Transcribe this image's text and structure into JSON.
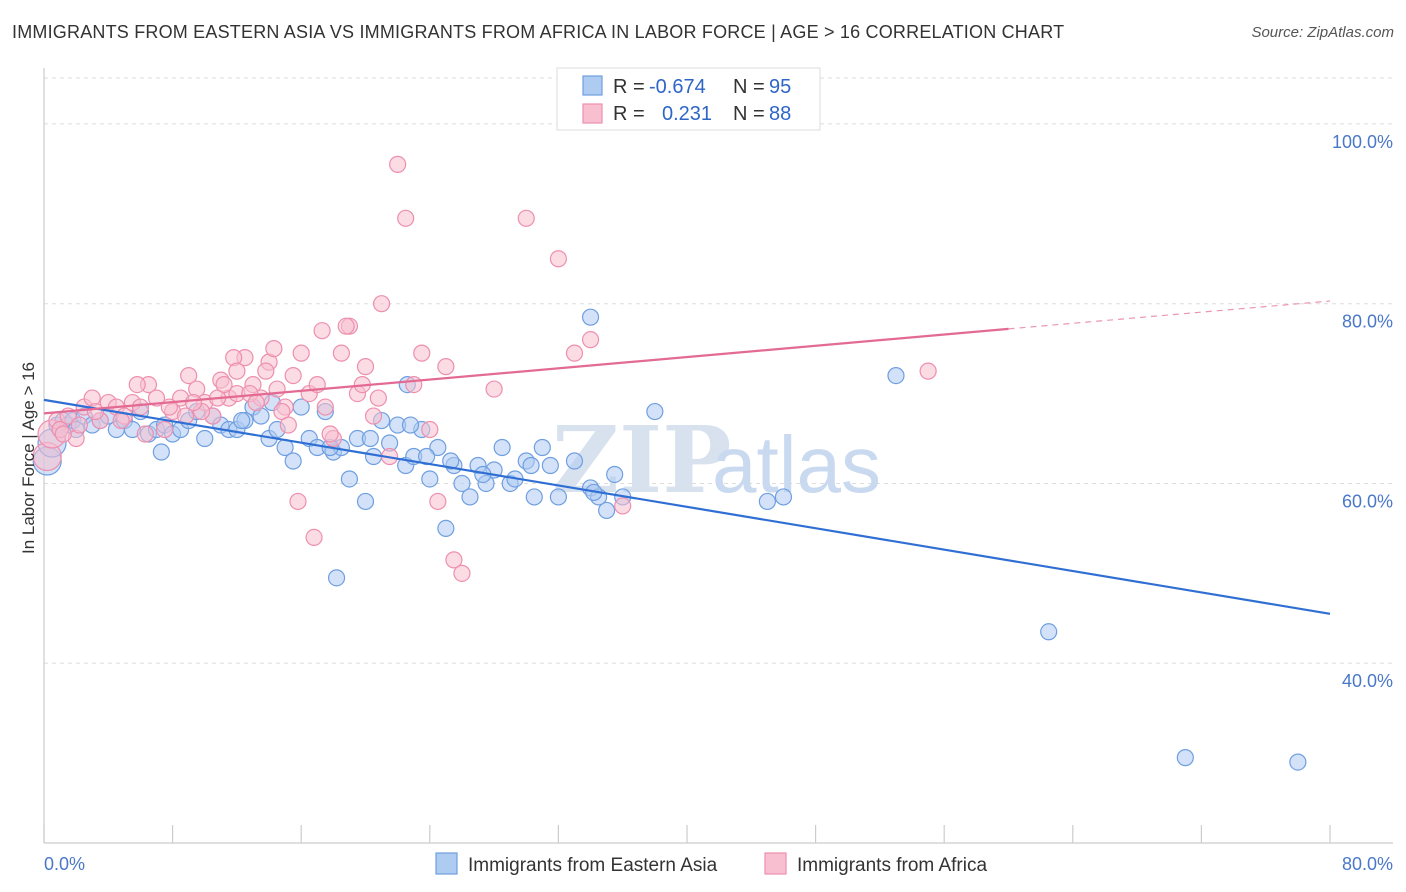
{
  "title": "IMMIGRANTS FROM EASTERN ASIA VS IMMIGRANTS FROM AFRICA IN LABOR FORCE | AGE > 16 CORRELATION CHART",
  "source": "Source: ZipAtlas.com",
  "watermark": {
    "zip": "ZIP",
    "atlas": "atlas"
  },
  "colors": {
    "blue_fill": "#aecbf2",
    "blue_stroke": "#6f9fe0",
    "blue_line": "#2f6fd4",
    "pink_fill": "#f7bfd0",
    "pink_stroke": "#ee8fae",
    "pink_line": "#e36a93",
    "tick_text": "#4a78c8",
    "grid": "#dddddd"
  },
  "legend": {
    "rows": [
      {
        "r_label": "R =",
        "r_value": "-0.674",
        "n_label": "N =",
        "n_value": "95"
      },
      {
        "r_label": "R =",
        "r_value": "0.231",
        "n_label": "N =",
        "n_value": "88"
      }
    ]
  },
  "chart_data": {
    "type": "scatter",
    "ylabel": "In Labor Force | Age > 16",
    "xlim": [
      0,
      80
    ],
    "ylim": [
      20,
      106
    ],
    "x_tick_labels": [
      "0.0%",
      "80.0%"
    ],
    "y_ticks": [
      40,
      60,
      80,
      100
    ],
    "y_tick_labels": [
      "40.0%",
      "60.0%",
      "80.0%",
      "100.0%"
    ],
    "grid": "horizontal dashed",
    "legend_position": "top-center",
    "series": [
      {
        "name": "Immigrants from Eastern Asia",
        "color": "#6f9fe0",
        "trend": {
          "x": [
            0,
            80
          ],
          "y": [
            69.3,
            45.5
          ]
        },
        "points": [
          [
            0.2,
            62.5
          ],
          [
            0.5,
            64.5
          ],
          [
            0.8,
            66.5
          ],
          [
            1.0,
            66.0
          ],
          [
            1.2,
            67.0
          ],
          [
            1.5,
            66.5
          ],
          [
            1.8,
            67.0
          ],
          [
            2.0,
            66.0
          ],
          [
            2.5,
            67.5
          ],
          [
            3.0,
            66.5
          ],
          [
            3.5,
            67.0
          ],
          [
            4.0,
            67.5
          ],
          [
            4.5,
            66.0
          ],
          [
            5.0,
            67.0
          ],
          [
            5.5,
            66.0
          ],
          [
            6.0,
            68.0
          ],
          [
            6.5,
            65.5
          ],
          [
            7.0,
            66.0
          ],
          [
            7.5,
            66.5
          ],
          [
            8.0,
            65.5
          ],
          [
            8.5,
            66.0
          ],
          [
            9.0,
            67.0
          ],
          [
            9.5,
            68.0
          ],
          [
            10.0,
            65.0
          ],
          [
            10.5,
            67.5
          ],
          [
            11.0,
            66.5
          ],
          [
            11.5,
            66.0
          ],
          [
            12.0,
            66.0
          ],
          [
            12.5,
            67.0
          ],
          [
            13.0,
            68.5
          ],
          [
            13.5,
            67.5
          ],
          [
            14.0,
            65.0
          ],
          [
            14.5,
            66.0
          ],
          [
            15.0,
            64.0
          ],
          [
            15.5,
            62.5
          ],
          [
            16.0,
            68.5
          ],
          [
            16.5,
            65.0
          ],
          [
            17.0,
            64.0
          ],
          [
            17.5,
            68.0
          ],
          [
            18.0,
            63.5
          ],
          [
            18.5,
            64.0
          ],
          [
            19.0,
            60.5
          ],
          [
            19.5,
            65.0
          ],
          [
            20.0,
            58.0
          ],
          [
            20.5,
            63.0
          ],
          [
            21.0,
            67.0
          ],
          [
            21.5,
            64.5
          ],
          [
            22.0,
            66.5
          ],
          [
            22.5,
            62.0
          ],
          [
            23.0,
            63.0
          ],
          [
            23.5,
            66.0
          ],
          [
            24.0,
            60.5
          ],
          [
            24.5,
            64.0
          ],
          [
            25.0,
            55.0
          ],
          [
            25.5,
            62.0
          ],
          [
            26.0,
            60.0
          ],
          [
            26.5,
            58.5
          ],
          [
            27.0,
            62.0
          ],
          [
            27.5,
            60.0
          ],
          [
            28.0,
            61.5
          ],
          [
            28.5,
            64.0
          ],
          [
            29.0,
            60.0
          ],
          [
            30.0,
            62.5
          ],
          [
            30.5,
            58.5
          ],
          [
            31.0,
            64.0
          ],
          [
            31.5,
            62.0
          ],
          [
            32.0,
            58.5
          ],
          [
            33.0,
            62.5
          ],
          [
            34.0,
            59.5
          ],
          [
            35.0,
            57.0
          ],
          [
            35.5,
            61.0
          ],
          [
            36.0,
            58.5
          ],
          [
            38.0,
            68.0
          ],
          [
            45.0,
            58.0
          ],
          [
            46.0,
            58.5
          ],
          [
            53.0,
            72.0
          ],
          [
            62.5,
            43.5
          ],
          [
            71.0,
            29.5
          ],
          [
            78.0,
            29.0
          ],
          [
            34.5,
            58.5
          ],
          [
            22.8,
            66.5
          ],
          [
            12.3,
            67.0
          ],
          [
            7.3,
            63.5
          ],
          [
            17.8,
            64.0
          ],
          [
            20.3,
            65.0
          ],
          [
            23.8,
            63.0
          ],
          [
            27.3,
            61.0
          ],
          [
            30.3,
            62.0
          ],
          [
            25.3,
            62.5
          ],
          [
            29.3,
            60.5
          ],
          [
            34.2,
            59.0
          ],
          [
            18.2,
            49.5
          ],
          [
            14.2,
            69.0
          ],
          [
            22.6,
            71.0
          ],
          [
            34.0,
            78.5
          ]
        ]
      },
      {
        "name": "Immigrants from Africa",
        "color": "#ee8fae",
        "trend": {
          "x": [
            0,
            60
          ],
          "y": [
            67.8,
            77.2
          ]
        },
        "trend_dashed": {
          "x": [
            60,
            80
          ],
          "y": [
            77.2,
            80.3
          ]
        },
        "points": [
          [
            0.2,
            63.0
          ],
          [
            0.5,
            65.5
          ],
          [
            0.8,
            67.0
          ],
          [
            1.0,
            66.0
          ],
          [
            1.5,
            67.5
          ],
          [
            2.0,
            65.0
          ],
          [
            2.5,
            68.5
          ],
          [
            3.0,
            69.5
          ],
          [
            3.5,
            67.0
          ],
          [
            4.0,
            69.0
          ],
          [
            4.5,
            68.5
          ],
          [
            5.0,
            67.5
          ],
          [
            5.5,
            69.0
          ],
          [
            6.0,
            68.5
          ],
          [
            6.5,
            71.0
          ],
          [
            7.0,
            69.5
          ],
          [
            7.5,
            66.0
          ],
          [
            8.0,
            68.0
          ],
          [
            8.5,
            69.5
          ],
          [
            9.0,
            72.0
          ],
          [
            9.5,
            70.5
          ],
          [
            10.0,
            69.0
          ],
          [
            10.5,
            67.5
          ],
          [
            11.0,
            71.5
          ],
          [
            11.5,
            69.5
          ],
          [
            12.0,
            70.0
          ],
          [
            12.5,
            74.0
          ],
          [
            13.0,
            71.0
          ],
          [
            13.5,
            69.5
          ],
          [
            14.0,
            73.5
          ],
          [
            14.5,
            70.5
          ],
          [
            15.0,
            68.5
          ],
          [
            15.5,
            72.0
          ],
          [
            16.0,
            74.5
          ],
          [
            16.5,
            70.0
          ],
          [
            17.0,
            71.0
          ],
          [
            17.5,
            68.5
          ],
          [
            18.0,
            65.0
          ],
          [
            18.5,
            74.5
          ],
          [
            19.0,
            77.5
          ],
          [
            19.5,
            70.0
          ],
          [
            20.0,
            73.0
          ],
          [
            20.5,
            67.5
          ],
          [
            21.0,
            80.0
          ],
          [
            21.5,
            63.0
          ],
          [
            22.0,
            95.5
          ],
          [
            22.5,
            89.5
          ],
          [
            23.0,
            71.0
          ],
          [
            23.5,
            74.5
          ],
          [
            24.0,
            66.0
          ],
          [
            24.5,
            58.0
          ],
          [
            25.0,
            73.0
          ],
          [
            25.5,
            51.5
          ],
          [
            26.0,
            50.0
          ],
          [
            28.0,
            70.5
          ],
          [
            30.0,
            89.5
          ],
          [
            32.0,
            85.0
          ],
          [
            33.0,
            74.5
          ],
          [
            34.0,
            76.0
          ],
          [
            36.0,
            57.5
          ],
          [
            55.0,
            72.5
          ],
          [
            13.8,
            72.5
          ],
          [
            9.8,
            68.0
          ],
          [
            11.8,
            74.0
          ],
          [
            15.8,
            58.0
          ],
          [
            17.3,
            77.0
          ],
          [
            16.8,
            54.0
          ],
          [
            6.3,
            65.5
          ],
          [
            4.8,
            67.0
          ],
          [
            3.2,
            68.0
          ],
          [
            2.2,
            66.5
          ],
          [
            1.2,
            65.5
          ],
          [
            7.8,
            68.5
          ],
          [
            9.3,
            69.0
          ],
          [
            10.8,
            69.5
          ],
          [
            12.8,
            70.0
          ],
          [
            14.8,
            68.0
          ],
          [
            17.8,
            65.5
          ],
          [
            19.8,
            71.0
          ],
          [
            8.8,
            67.5
          ],
          [
            13.2,
            69.0
          ],
          [
            15.2,
            66.5
          ],
          [
            11.2,
            71.0
          ],
          [
            18.8,
            77.5
          ],
          [
            5.8,
            71.0
          ],
          [
            12.0,
            72.5
          ],
          [
            20.8,
            69.5
          ],
          [
            14.3,
            75.0
          ]
        ]
      }
    ]
  }
}
